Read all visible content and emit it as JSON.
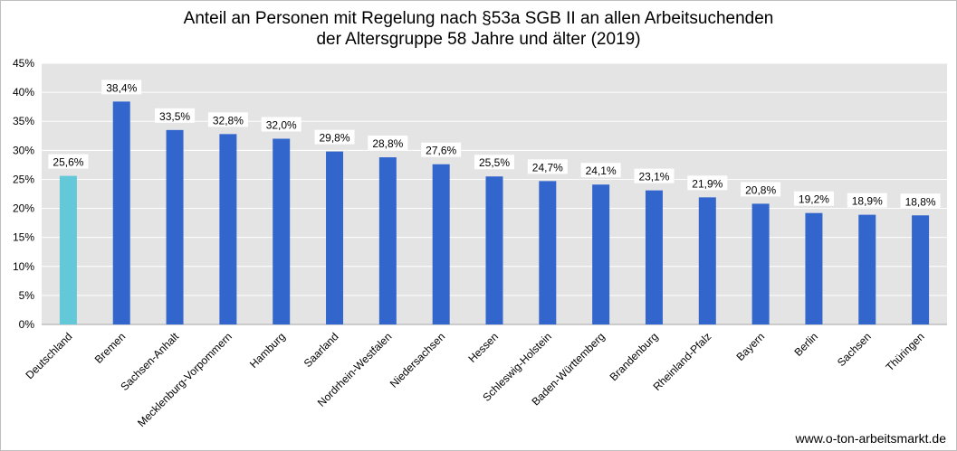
{
  "chart_data": {
    "type": "bar",
    "title": "Anteil an Personen mit Regelung nach §53a SGB II an allen Arbeitsuchenden",
    "subtitle": "der Altersgruppe 58 Jahre und älter (2019)",
    "categories": [
      "Deutschland",
      "Bremen",
      "Sachsen-Anhalt",
      "Mecklenburg-Vorpommern",
      "Hamburg",
      "Saarland",
      "Nordrhein-Westfalen",
      "Niedersachsen",
      "Hessen",
      "Schleswig-Holstein",
      "Baden-Württemberg",
      "Brandenburg",
      "Rheinland-Pfalz",
      "Bayern",
      "Berlin",
      "Sachsen",
      "Thüringen"
    ],
    "values": [
      25.6,
      38.4,
      33.5,
      32.8,
      32.0,
      29.8,
      28.8,
      27.6,
      25.5,
      24.7,
      24.1,
      23.1,
      21.9,
      20.8,
      19.2,
      18.9,
      18.8
    ],
    "data_labels": [
      "25,6%",
      "38,4%",
      "33,5%",
      "32,8%",
      "32,0%",
      "29,8%",
      "28,8%",
      "27,6%",
      "25,5%",
      "24,7%",
      "24,1%",
      "23,1%",
      "21,9%",
      "20,8%",
      "19,2%",
      "18,9%",
      "18,8%"
    ],
    "y_ticks": [
      0,
      5,
      10,
      15,
      20,
      25,
      30,
      35,
      40,
      45
    ],
    "y_tick_labels": [
      "0%",
      "5%",
      "10%",
      "15%",
      "20%",
      "25%",
      "30%",
      "35%",
      "40%",
      "45%"
    ],
    "ylim": [
      0,
      45
    ],
    "grid": true,
    "colors": {
      "highlight": "#63c9d9",
      "bar": "#3366cc",
      "plot_background": "#e4e4e4",
      "gridline": "#ffffff"
    },
    "highlight_index": 0
  },
  "source": "www.o-ton-arbeitsmarkt.de"
}
